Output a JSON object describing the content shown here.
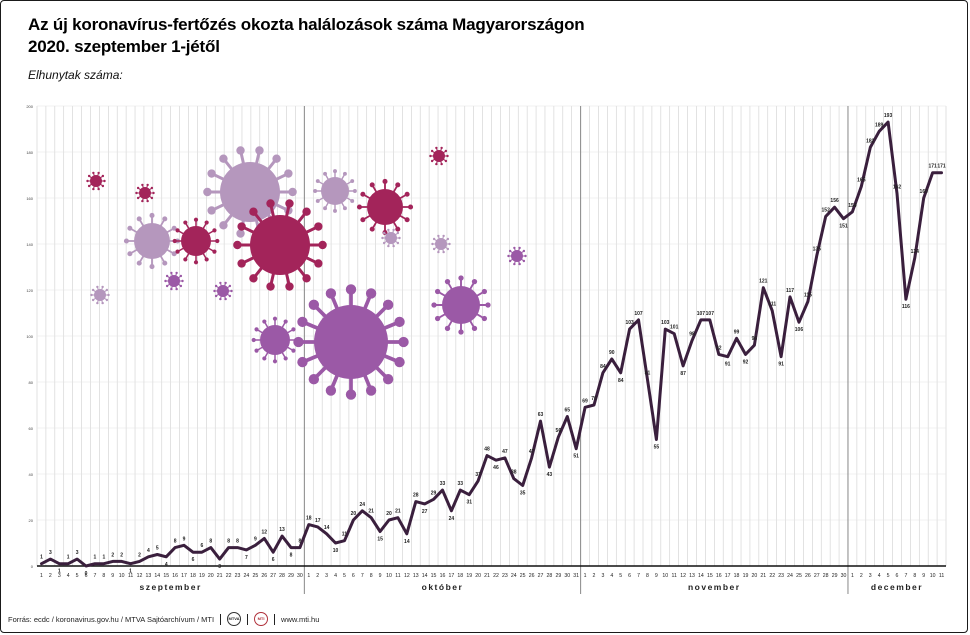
{
  "header": {
    "title_line1": "Az új koronavírus-fertőzés okozta halálozások száma Magyarországon",
    "title_line2": "2020. szeptember 1-jétől",
    "subtitle": "Elhunytak száma:"
  },
  "footer": {
    "source": "Forrás: ecdc / koronavirus.gov.hu / MTVA Sajtóarchívum / MTI",
    "logo1": "MTVA",
    "logo2": "MTI",
    "url": "www.mti.hu"
  },
  "colors": {
    "line": "#3a1f3d",
    "grid": "#cfcfcf",
    "virus_purple": "#9b59a6",
    "virus_magenta": "#a3245a",
    "virus_lilac": "#b597bd"
  },
  "chart_data": {
    "type": "line",
    "title": "Az új koronavírus-fertőzés okozta halálozások száma Magyarországon 2020. szeptember 1-jétől",
    "ylabel": "Elhunytak száma:",
    "ylim": [
      0,
      200
    ],
    "yticks": [
      0,
      20,
      40,
      60,
      80,
      100,
      120,
      140,
      160,
      180,
      200
    ],
    "grid": true,
    "months": [
      {
        "label": "szeptember",
        "days": 30
      },
      {
        "label": "október",
        "days": 31
      },
      {
        "label": "november",
        "days": 30
      },
      {
        "label": "december",
        "days": 11
      }
    ],
    "series": [
      {
        "values": [
          1,
          3,
          1,
          1,
          3,
          0,
          1,
          1,
          2,
          2,
          1,
          2,
          4,
          5,
          4,
          8,
          9,
          6,
          6,
          8,
          3,
          8,
          8,
          7,
          9,
          12,
          6,
          13,
          8,
          8,
          18,
          17,
          14,
          10,
          11,
          20,
          24,
          21,
          15,
          20,
          21,
          14,
          28,
          27,
          29,
          33,
          24,
          33,
          31,
          37,
          48,
          46,
          47,
          38,
          35,
          47,
          63,
          43,
          56,
          65,
          51,
          69,
          70,
          84,
          90,
          84,
          103,
          107,
          81,
          55,
          103,
          101,
          87,
          98,
          107,
          107,
          92,
          91,
          99,
          92,
          96,
          121,
          111,
          91,
          117,
          106,
          115,
          135,
          152,
          156,
          151,
          154,
          165,
          182,
          189,
          193,
          162,
          116,
          134,
          160,
          171,
          171
        ]
      }
    ]
  },
  "viruses": [
    {
      "cx": 96,
      "cy": 181,
      "r": 6,
      "color": "#a3245a",
      "spikes": 10
    },
    {
      "cx": 145,
      "cy": 193,
      "r": 6,
      "color": "#a3245a",
      "spikes": 10
    },
    {
      "cx": 152,
      "cy": 241,
      "r": 18,
      "color": "#b597bd",
      "spikes": 12
    },
    {
      "cx": 196,
      "cy": 241,
      "r": 15,
      "color": "#a3245a",
      "spikes": 12
    },
    {
      "cx": 250,
      "cy": 192,
      "r": 30,
      "color": "#b597bd",
      "spikes": 14
    },
    {
      "cx": 280,
      "cy": 245,
      "r": 30,
      "color": "#a3245a",
      "spikes": 14
    },
    {
      "cx": 174,
      "cy": 281,
      "r": 6,
      "color": "#9b59a6",
      "spikes": 10
    },
    {
      "cx": 100,
      "cy": 295,
      "r": 6,
      "color": "#b597bd",
      "spikes": 10
    },
    {
      "cx": 223,
      "cy": 291,
      "r": 6,
      "color": "#9b59a6",
      "spikes": 10
    },
    {
      "cx": 275,
      "cy": 340,
      "r": 15,
      "color": "#9b59a6",
      "spikes": 12
    },
    {
      "cx": 335,
      "cy": 191,
      "r": 14,
      "color": "#b597bd",
      "spikes": 12
    },
    {
      "cx": 385,
      "cy": 207,
      "r": 18,
      "color": "#a3245a",
      "spikes": 12
    },
    {
      "cx": 391,
      "cy": 238,
      "r": 6,
      "color": "#b597bd",
      "spikes": 10
    },
    {
      "cx": 351,
      "cy": 342,
      "r": 37,
      "color": "#9b59a6",
      "spikes": 16
    },
    {
      "cx": 439,
      "cy": 156,
      "r": 6,
      "color": "#a3245a",
      "spikes": 10
    },
    {
      "cx": 441,
      "cy": 244,
      "r": 6,
      "color": "#b597bd",
      "spikes": 10
    },
    {
      "cx": 461,
      "cy": 305,
      "r": 19,
      "color": "#9b59a6",
      "spikes": 12
    },
    {
      "cx": 517,
      "cy": 256,
      "r": 6,
      "color": "#9b59a6",
      "spikes": 10
    }
  ]
}
